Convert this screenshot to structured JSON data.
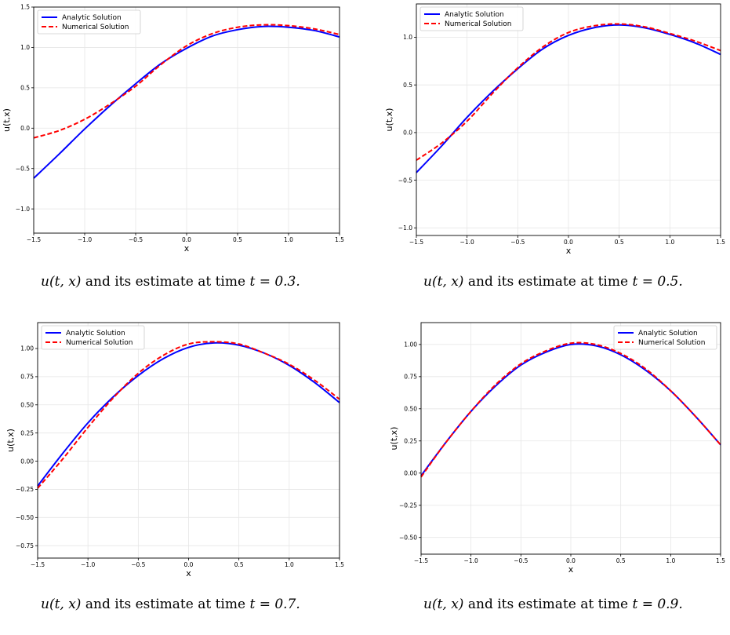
{
  "chart_data": [
    {
      "type": "line",
      "xlabel": "x",
      "ylabel": "u(t,x)",
      "xlim": [
        -1.5,
        1.5
      ],
      "ylim": [
        -1.3,
        1.5
      ],
      "xticks": [
        "-1.5",
        "-1.0",
        "-0.5",
        "0.0",
        "0.5",
        "1.0",
        "1.5"
      ],
      "yticks": [
        "-1.0",
        "-0.5",
        "0.0",
        "0.5",
        "1.0",
        "1.5"
      ],
      "grid": true,
      "legend": "top-left",
      "x": [
        -1.5,
        -1.25,
        -1.0,
        -0.75,
        -0.5,
        -0.25,
        0.0,
        0.25,
        0.5,
        0.75,
        1.0,
        1.25,
        1.5
      ],
      "series": [
        {
          "name": "Analytic Solution",
          "color": "#0000ff",
          "style": "solid",
          "values": [
            -0.62,
            -0.32,
            -0.01,
            0.28,
            0.55,
            0.8,
            0.99,
            1.14,
            1.22,
            1.26,
            1.25,
            1.21,
            1.13
          ]
        },
        {
          "name": "Numerical Solution",
          "color": "#ff0000",
          "style": "dashed",
          "values": [
            -0.12,
            -0.03,
            0.11,
            0.3,
            0.52,
            0.79,
            1.02,
            1.17,
            1.25,
            1.28,
            1.27,
            1.23,
            1.16
          ]
        }
      ],
      "caption": {
        "prefix": "u(t, x)",
        "middle": " and its estimate at time ",
        "time": "t = 0.3."
      }
    },
    {
      "type": "line",
      "xlabel": "x",
      "ylabel": "u(t,x)",
      "xlim": [
        -1.5,
        1.5
      ],
      "ylim": [
        -1.08,
        1.35
      ],
      "xticks": [
        "-1.5",
        "-1.0",
        "-0.5",
        "0.0",
        "0.5",
        "1.0",
        "1.5"
      ],
      "yticks": [
        "-1.0",
        "-0.5",
        "0.0",
        "0.5",
        "1.0"
      ],
      "grid": true,
      "legend": "top-left",
      "x": [
        -1.5,
        -1.25,
        -1.0,
        -0.75,
        -0.5,
        -0.25,
        0.0,
        0.25,
        0.5,
        0.75,
        1.0,
        1.25,
        1.5
      ],
      "series": [
        {
          "name": "Analytic Solution",
          "color": "#0000ff",
          "style": "solid",
          "values": [
            -0.42,
            -0.14,
            0.16,
            0.43,
            0.67,
            0.88,
            1.02,
            1.1,
            1.13,
            1.1,
            1.03,
            0.94,
            0.82
          ]
        },
        {
          "name": "Numerical Solution",
          "color": "#ff0000",
          "style": "dashed",
          "values": [
            -0.29,
            -0.11,
            0.12,
            0.41,
            0.68,
            0.9,
            1.05,
            1.12,
            1.14,
            1.11,
            1.04,
            0.96,
            0.86
          ]
        }
      ],
      "caption": {
        "prefix": "u(t, x)",
        "middle": " and its estimate at time ",
        "time": "t = 0.5."
      }
    },
    {
      "type": "line",
      "xlabel": "x",
      "ylabel": "u(t,x)",
      "xlim": [
        -1.5,
        1.5
      ],
      "ylim": [
        -0.86,
        1.23
      ],
      "xticks": [
        "-1.5",
        "-1.0",
        "-0.5",
        "0.0",
        "0.5",
        "1.0",
        "1.5"
      ],
      "yticks": [
        "-0.75",
        "-0.50",
        "-0.25",
        "0.00",
        "0.25",
        "0.50",
        "0.75",
        "1.00"
      ],
      "grid": true,
      "legend": "top-left",
      "x": [
        -1.5,
        -1.25,
        -1.0,
        -0.75,
        -0.5,
        -0.25,
        0.0,
        0.25,
        0.5,
        0.75,
        1.0,
        1.25,
        1.5
      ],
      "series": [
        {
          "name": "Analytic Solution",
          "color": "#0000ff",
          "style": "solid",
          "values": [
            -0.22,
            0.07,
            0.34,
            0.57,
            0.76,
            0.91,
            1.01,
            1.05,
            1.03,
            0.96,
            0.85,
            0.7,
            0.52
          ]
        },
        {
          "name": "Numerical Solution",
          "color": "#ff0000",
          "style": "dashed",
          "values": [
            -0.24,
            0.02,
            0.3,
            0.56,
            0.78,
            0.94,
            1.04,
            1.06,
            1.04,
            0.96,
            0.86,
            0.72,
            0.55
          ]
        }
      ],
      "caption": {
        "prefix": "u(t, x)",
        "middle": " and its estimate at time ",
        "time": "t = 0.7."
      }
    },
    {
      "type": "line",
      "xlabel": "x",
      "ylabel": "u(t,x)",
      "xlim": [
        -1.5,
        1.5
      ],
      "ylim": [
        -0.63,
        1.17
      ],
      "xticks": [
        "-1.5",
        "-1.0",
        "-0.5",
        "0.0",
        "0.5",
        "1.0",
        "1.5"
      ],
      "yticks": [
        "-0.50",
        "-0.25",
        "0.00",
        "0.25",
        "0.50",
        "0.75",
        "1.00"
      ],
      "grid": true,
      "legend": "top-right",
      "x": [
        -1.5,
        -1.25,
        -1.0,
        -0.75,
        -0.5,
        -0.25,
        0.0,
        0.25,
        0.5,
        0.75,
        1.0,
        1.25,
        1.5
      ],
      "series": [
        {
          "name": "Analytic Solution",
          "color": "#0000ff",
          "style": "solid",
          "values": [
            -0.02,
            0.24,
            0.48,
            0.68,
            0.84,
            0.94,
            1.0,
            0.99,
            0.92,
            0.8,
            0.64,
            0.44,
            0.22
          ]
        },
        {
          "name": "Numerical Solution",
          "color": "#ff0000",
          "style": "dashed",
          "values": [
            -0.03,
            0.24,
            0.48,
            0.69,
            0.85,
            0.95,
            1.01,
            1.0,
            0.93,
            0.81,
            0.64,
            0.44,
            0.22
          ]
        }
      ],
      "caption": {
        "prefix": "u(t, x)",
        "middle": " and its estimate at time ",
        "time": "t = 0.9."
      }
    }
  ]
}
